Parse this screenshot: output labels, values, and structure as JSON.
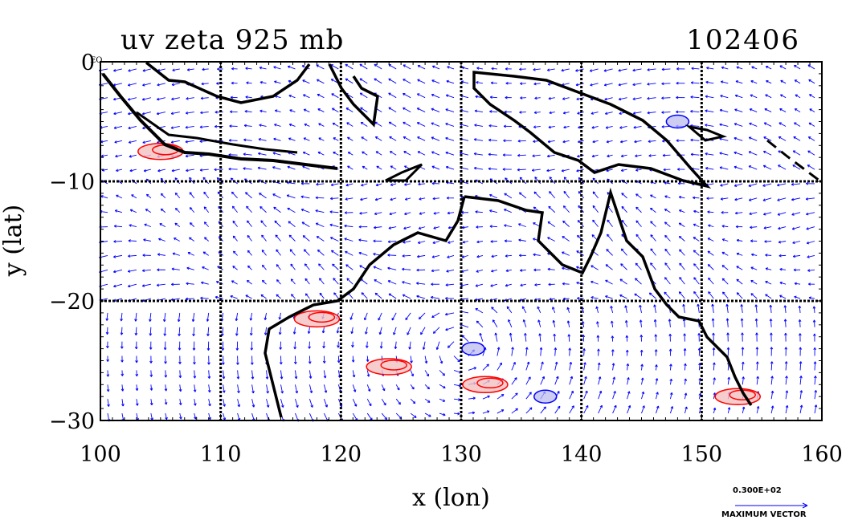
{
  "chart_data": {
    "type": "vector-contour-map",
    "title": "uv zeta 925 mb",
    "time_label": "102406",
    "xlabel": "x (lon)",
    "ylabel": "y (lat)",
    "xlim": [
      100,
      160
    ],
    "ylim": [
      -30,
      0
    ],
    "xticks": [
      100,
      110,
      120,
      130,
      140,
      150,
      160
    ],
    "yticks": [
      0,
      -10,
      -20,
      -30
    ],
    "ytick_labels": [
      "0",
      "−10",
      "−20",
      "−30"
    ],
    "equator_tag": "EQ",
    "grid": true,
    "vector_color": "#0000ff",
    "positive_contour_color": "#ff0000",
    "negative_contour_color": "#0000ff",
    "coastline_color": "#000000",
    "reference_vector_value": "0.300E+02",
    "reference_vector_label": "MAXIMUM VECTOR",
    "positive_vorticity_regions": [
      {
        "lon": 105,
        "lat": -7.5
      },
      {
        "lon": 118,
        "lat": -21.5
      },
      {
        "lon": 124,
        "lat": -25.5
      },
      {
        "lon": 132,
        "lat": -27
      },
      {
        "lon": 153,
        "lat": -28
      }
    ],
    "negative_vorticity_regions": [
      {
        "lon": 148,
        "lat": -5
      },
      {
        "lon": 131,
        "lat": -24
      },
      {
        "lon": 137,
        "lat": -28
      }
    ]
  }
}
